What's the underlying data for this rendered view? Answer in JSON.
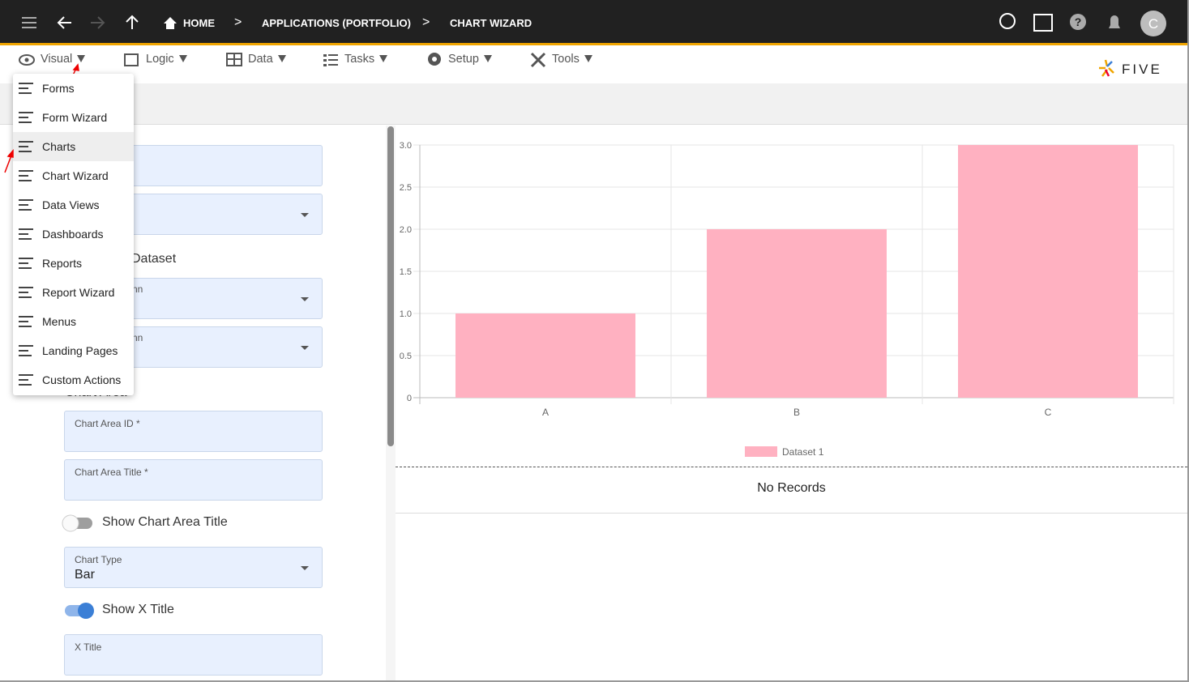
{
  "topbar": {
    "breadcrumbs": [
      "HOME",
      "APPLICATIONS (PORTFOLIO)",
      "CHART WIZARD"
    ],
    "avatar": "C"
  },
  "menubar": {
    "items": [
      "Visual",
      "Logic",
      "Data",
      "Tasks",
      "Setup",
      "Tools"
    ],
    "logo": "FIVE"
  },
  "dropdown": {
    "items": [
      "Forms",
      "Form Wizard",
      "Charts",
      "Chart Wizard",
      "Data Views",
      "Dashboards",
      "Reports",
      "Report Wizard",
      "Menus",
      "Landing Pages",
      "Custom Actions"
    ]
  },
  "form": {
    "dataset_heading": "Dataset",
    "partial_labels": [
      "nn",
      "nn"
    ],
    "chart_area_heading": "Chart Area",
    "chart_area_id": "Chart Area ID *",
    "chart_area_title": "Chart Area Title *",
    "show_chart_area_title": "Show Chart Area Title",
    "chart_type": {
      "label": "Chart Type",
      "value": "Bar"
    },
    "show_x_title": "Show X Title",
    "x_title": "X Title"
  },
  "chart_data": {
    "type": "bar",
    "categories": [
      "A",
      "B",
      "C"
    ],
    "series": [
      {
        "name": "Dataset 1",
        "color": "#ffb1c1",
        "values": [
          1,
          2,
          3
        ]
      }
    ],
    "ylim": [
      0,
      3
    ],
    "yticks": [
      0,
      0.5,
      {
        "value": 1,
        "label": "1.0"
      },
      1.5,
      {
        "value": 2,
        "label": "2.0"
      },
      2.5,
      {
        "value": 3,
        "label": "3.0"
      }
    ],
    "grid": true
  },
  "table": {
    "empty_text": "No Records"
  }
}
